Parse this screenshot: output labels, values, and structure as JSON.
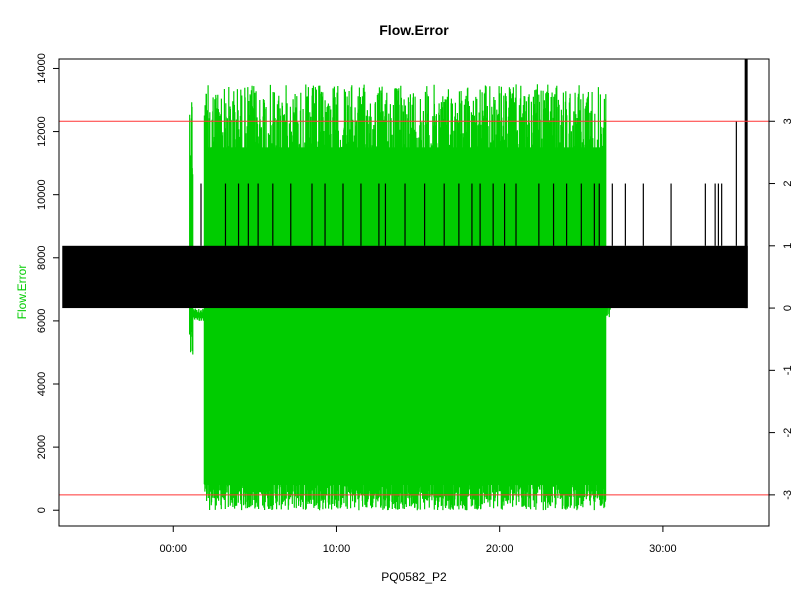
{
  "chart_data": {
    "type": "line",
    "title": "Flow.Error",
    "xlabel": "PQ0582_P2",
    "ylabel": "Flow.Error",
    "ylabel_right": "",
    "x_unit": "minutes",
    "xlim": [
      -7,
      36.5
    ],
    "ylim": [
      -500,
      14300
    ],
    "ylim_right": [
      -3.5,
      4
    ],
    "x_ticks": [
      {
        "value": 0,
        "label": "00:00"
      },
      {
        "value": 10,
        "label": "10:00"
      },
      {
        "value": 20,
        "label": "20:00"
      },
      {
        "value": 30,
        "label": "30:00"
      }
    ],
    "y_ticks": [
      {
        "value": 0,
        "label": "0"
      },
      {
        "value": 2000,
        "label": "2000"
      },
      {
        "value": 4000,
        "label": "4000"
      },
      {
        "value": 6000,
        "label": "6000"
      },
      {
        "value": 8000,
        "label": "8000"
      },
      {
        "value": 10000,
        "label": "10000"
      },
      {
        "value": 12000,
        "label": "12000"
      },
      {
        "value": 14000,
        "label": "14000"
      }
    ],
    "y_ticks_right": [
      {
        "value": -3,
        "label": "-3"
      },
      {
        "value": -2,
        "label": "-2"
      },
      {
        "value": -1,
        "label": "-1"
      },
      {
        "value": 0,
        "label": "0"
      },
      {
        "value": 1,
        "label": "1"
      },
      {
        "value": 2,
        "label": "2"
      },
      {
        "value": 3,
        "label": "3"
      }
    ],
    "reference_lines_right": [
      3,
      -3
    ],
    "series": [
      {
        "axis": "left",
        "color": "#00cc00",
        "segments": [
          {
            "x_start": 1.0,
            "x_end": 1.2,
            "y_min": 4800,
            "y_max": 13600
          },
          {
            "x_start": 1.2,
            "x_end": 1.9,
            "y_min": 6000,
            "y_max": 6400
          },
          {
            "x_start": 1.9,
            "x_end": 26.5,
            "y_min": 0,
            "y_max": 13500
          },
          {
            "x_start": 26.5,
            "x_end": 26.8,
            "y_min": 6100,
            "y_max": 6800
          }
        ]
      },
      {
        "axis": "right",
        "color": "#000000",
        "band": {
          "x_start": -6.8,
          "x_end": 35.2,
          "y_min": 0,
          "y_max": 1
        },
        "spikes_to_2": [
          1.7,
          3.2,
          4.0,
          4.6,
          5.2,
          6.1,
          7.2,
          8.5,
          9.3,
          10.4,
          11.5,
          12.6,
          13.0,
          14.2,
          15.4,
          16.6,
          17.5,
          18.3,
          18.8,
          19.6,
          20.3,
          21.0,
          22.4,
          23.3,
          24.1,
          25.0,
          25.8,
          26.1,
          26.9,
          27.7,
          28.8,
          30.5,
          32.6,
          33.2,
          33.4,
          33.6
        ],
        "spikes_to_3": [
          34.5
        ],
        "final_line": {
          "x": 35.1,
          "y_max": 4
        }
      }
    ]
  }
}
